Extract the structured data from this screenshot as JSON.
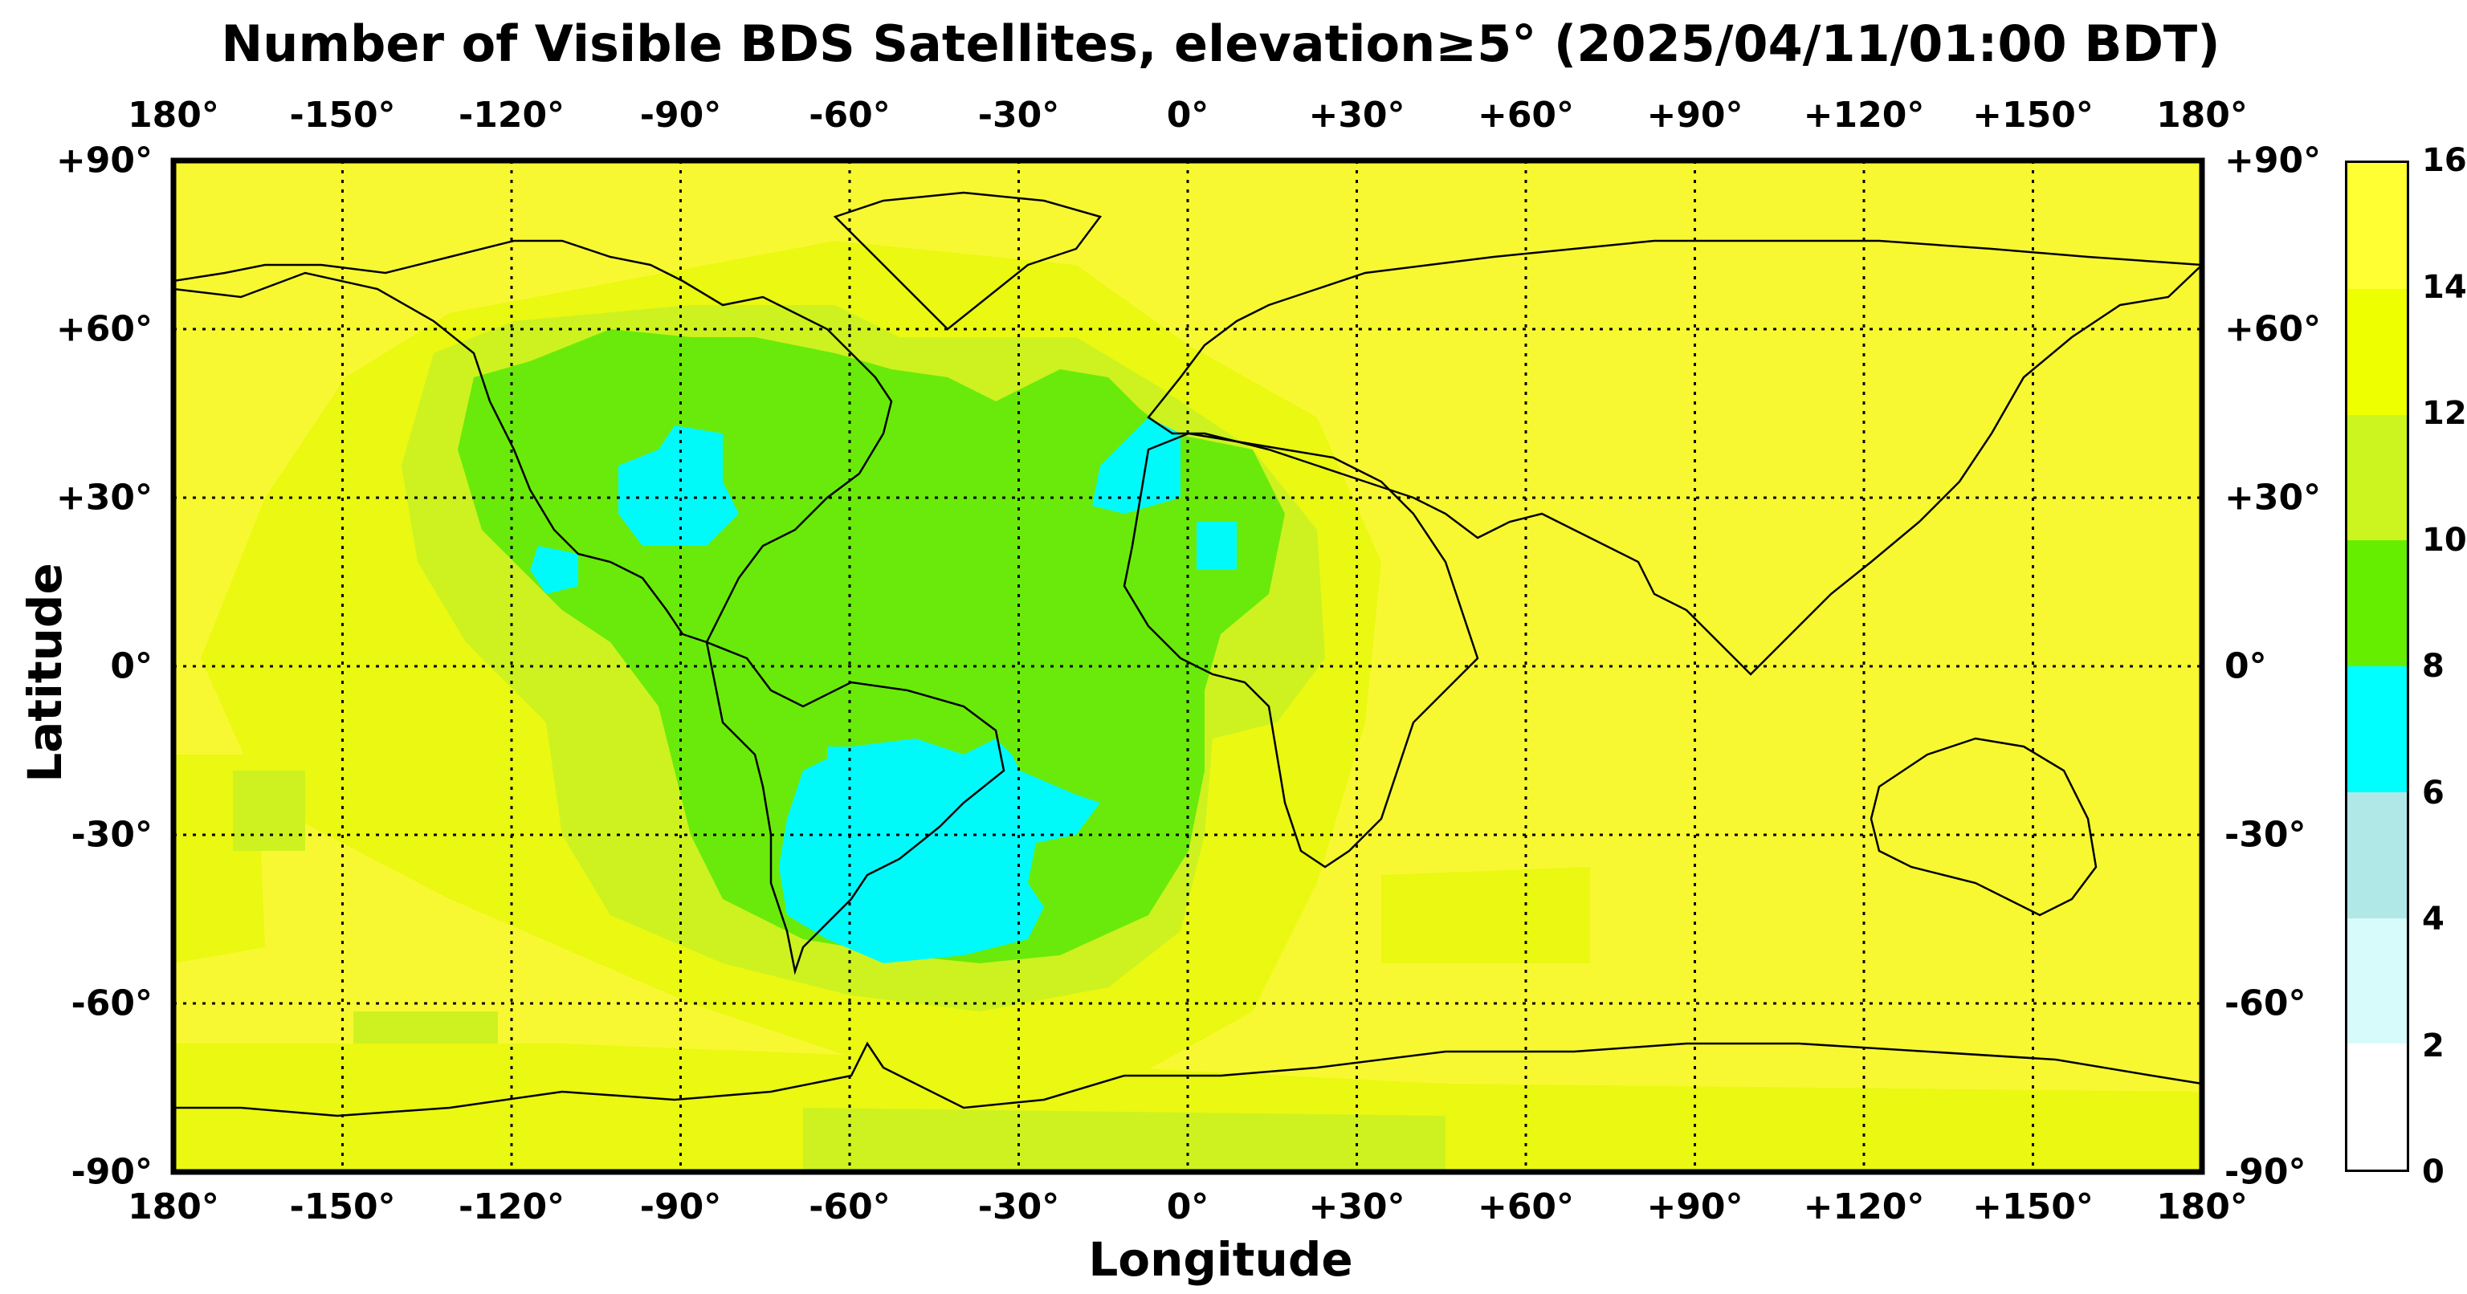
{
  "title": "Number of Visible BDS Satellites, elevation≥5° (2025/04/11/01:00 BDT)",
  "xlabel": "Longitude",
  "ylabel": "Latitude",
  "lon_ticks": [
    "180°",
    "-150°",
    "-120°",
    "-90°",
    "-60°",
    "-30°",
    "0°",
    "+30°",
    "+60°",
    "+90°",
    "+120°",
    "+150°",
    "180°"
  ],
  "lat_ticks": [
    "+90°",
    "+60°",
    "+30°",
    "0°",
    "-30°",
    "-60°",
    "-90°"
  ],
  "colorbar": {
    "ticks": [
      "0",
      "2",
      "4",
      "6",
      "8",
      "10",
      "12",
      "14",
      "16"
    ],
    "colors": [
      "#ffffff",
      "#d7fbfb",
      "#b0e8e8",
      "#00ffff",
      "#66ee00",
      "#ccf51f",
      "#eeff00",
      "#ffff33"
    ]
  },
  "map_colors": {
    "c16": "#f8f832",
    "c14": "#eaf812",
    "c12": "#cdf220",
    "c10": "#6aea0a",
    "c8": "#00fafa"
  }
}
